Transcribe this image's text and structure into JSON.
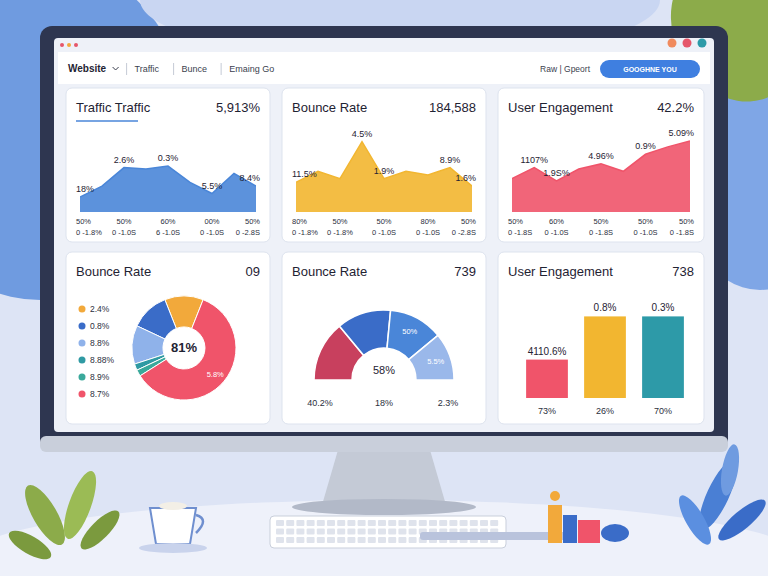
{
  "nav": {
    "items": [
      "Website",
      "Traffic",
      "Bunce",
      "Emaing Go"
    ],
    "right": "Raw | Gpeort",
    "button": "GOOGHNE YOU"
  },
  "chart_data": [
    {
      "type": "area",
      "title": "Traffic Traffic",
      "headline": "5,913%",
      "color": "#4a86d8",
      "ylim": [
        0,
        100
      ],
      "tick_labels": "x",
      "categories": [
        "50%",
        null,
        "50%",
        null,
        "60%",
        null,
        "00%",
        null,
        "50%"
      ],
      "categories2": [
        "0 -1.8%",
        null,
        "0 -1.0S",
        null,
        "6 -1.0S",
        null,
        "0 -1.0S",
        null,
        "0 -2.8S"
      ],
      "values": [
        20,
        35,
        60,
        58,
        62,
        40,
        25,
        52,
        35
      ],
      "annotations": [
        {
          "text": "18%",
          "index": 0
        },
        {
          "text": "2.6%",
          "index": 2
        },
        {
          "text": "0.3%",
          "index": 4
        },
        {
          "text": "5.5%",
          "index": 6
        },
        {
          "text": "8.4%",
          "index": 8
        }
      ]
    },
    {
      "type": "area",
      "title": "Bounce Rate",
      "headline": "184,588",
      "color": "#f2b630",
      "ylim": [
        0,
        100
      ],
      "tick_labels": "x",
      "categories": [
        "80%",
        null,
        "50%",
        null,
        "50%",
        null,
        "80%",
        null,
        "50%"
      ],
      "categories2": [
        "0 -1.8%",
        null,
        "0 -1.8%",
        null,
        "0 -1.0S",
        null,
        "0 -1.0S",
        null,
        "0 -2.8S"
      ],
      "values": [
        40,
        55,
        45,
        95,
        45,
        55,
        50,
        60,
        35
      ],
      "annotations": [
        {
          "text": "11.5%",
          "index": 0
        },
        {
          "text": "4.5%",
          "index": 3
        },
        {
          "text": "1.9%",
          "index": 4
        },
        {
          "text": "8.9%",
          "index": 7
        },
        {
          "text": "1.6%",
          "index": 8
        }
      ]
    },
    {
      "type": "area",
      "title": "User Engagement",
      "headline": "42.2%",
      "color": "#f0546a",
      "ylim": [
        0,
        100
      ],
      "tick_labels": "x",
      "categories": [
        "50%",
        null,
        "60%",
        null,
        "50%",
        null,
        "50%",
        null,
        "50%"
      ],
      "categories2": [
        "0 -1.8S",
        null,
        "0 -1.0S",
        null,
        "0 -1.8S",
        null,
        "0 -1.0S",
        null,
        "0 -1.8S"
      ],
      "values": [
        45,
        60,
        42,
        58,
        65,
        55,
        78,
        88,
        96
      ],
      "annotations": [
        {
          "text": "1107%",
          "index": 1
        },
        {
          "text": "1.9S%",
          "index": 2
        },
        {
          "text": "4.96%",
          "index": 4
        },
        {
          "text": "0.9%",
          "index": 6
        },
        {
          "text": "5.09%",
          "index": 8
        }
      ]
    },
    {
      "type": "donut",
      "title": "Bounce Rate",
      "headline": "09",
      "legend": "left",
      "categories": [
        "2.4%",
        "0.8%",
        "8.8%",
        "8.88%",
        "8.9%",
        "8.7%"
      ],
      "values": [
        12,
        12,
        12,
        2,
        2,
        60
      ],
      "colors": [
        "#f2a93b",
        "#3a6cc8",
        "#8fb2ea",
        "#2f9aa3",
        "#3aa99b",
        "#f0546a"
      ],
      "center_label": "81%",
      "annotations": [
        {
          "text": "5.8%",
          "index": 5
        }
      ]
    },
    {
      "type": "gauge",
      "title": "Bounce Rate",
      "headline": "739",
      "values": [
        28,
        25,
        25,
        22
      ],
      "colors": [
        "#c8405e",
        "#3a6cc8",
        "#4a86d8",
        "#9ab8ea"
      ],
      "center_label": "58%",
      "annotations": [
        {
          "text": "50%",
          "index": 2
        },
        {
          "text": "5.5%",
          "index": 3
        }
      ],
      "footer_labels": [
        "40.2%",
        "18%",
        "2.3%"
      ]
    },
    {
      "type": "bar",
      "title": "User Engagement",
      "headline": "738",
      "categories": [
        "73%",
        "26%",
        "70%"
      ],
      "values": [
        40,
        85,
        85
      ],
      "colors": [
        "#f0546a",
        "#f2b630",
        "#2d9aa8"
      ],
      "ylim": [
        0,
        100
      ],
      "tick_labels": "x",
      "annotations": [
        {
          "text": "4110.6%",
          "index": 0
        },
        {
          "text": "0.8%",
          "index": 1
        },
        {
          "text": "0.3%",
          "index": 2
        }
      ]
    }
  ]
}
